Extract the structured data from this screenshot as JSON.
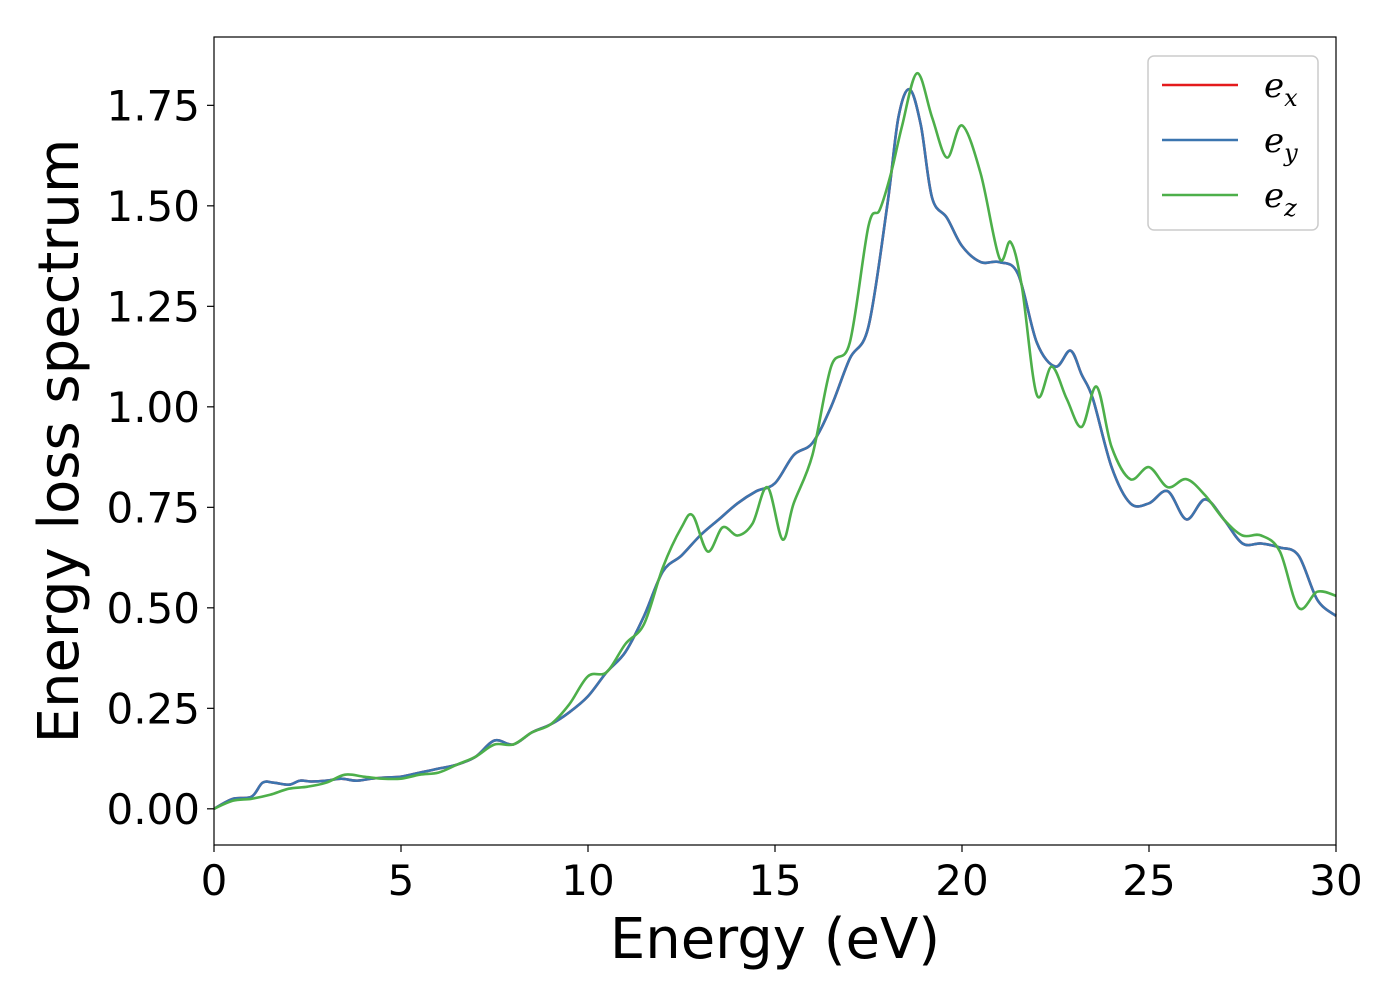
{
  "chart_data": {
    "type": "line",
    "title": "",
    "xlabel": "Energy (eV)",
    "ylabel": "Energy loss spectrum",
    "xlim": [
      0,
      30
    ],
    "ylim": [
      -0.09,
      1.92
    ],
    "xticks": [
      0,
      5,
      10,
      15,
      20,
      25,
      30
    ],
    "xtick_labels": [
      "0",
      "5",
      "10",
      "15",
      "20",
      "25",
      "30"
    ],
    "yticks": [
      0,
      0.25,
      0.5,
      0.75,
      1.0,
      1.25,
      1.5,
      1.75
    ],
    "ytick_labels": [
      "0.00",
      "0.25",
      "0.50",
      "0.75",
      "1.00",
      "1.25",
      "1.50",
      "1.75"
    ],
    "grid": false,
    "legend_position": "top-right",
    "series": [
      {
        "name": "e_x",
        "legend_base": "e",
        "legend_sub": "x",
        "color": "#e41a1c",
        "x": [
          0,
          0.5,
          1.0,
          1.3,
          1.6,
          2.0,
          2.3,
          2.6,
          3.0,
          3.4,
          3.8,
          4.2,
          4.6,
          5.0,
          5.5,
          6.0,
          6.5,
          7.0,
          7.5,
          8.0,
          8.5,
          9.0,
          9.5,
          10.0,
          10.5,
          11.0,
          11.5,
          12.0,
          12.5,
          13.0,
          13.5,
          14.0,
          14.5,
          15.0,
          15.5,
          16.0,
          16.5,
          17.0,
          17.5,
          18.0,
          18.3,
          18.6,
          18.9,
          19.2,
          19.6,
          20.0,
          20.5,
          21.0,
          21.5,
          22.0,
          22.5,
          22.9,
          23.2,
          23.5,
          24.0,
          24.5,
          25.0,
          25.5,
          26.0,
          26.5,
          27.0,
          27.5,
          28.0,
          28.5,
          29.0,
          29.5,
          30.0
        ],
        "values": [
          0.0,
          0.025,
          0.03,
          0.065,
          0.065,
          0.06,
          0.07,
          0.068,
          0.07,
          0.075,
          0.07,
          0.075,
          0.078,
          0.08,
          0.09,
          0.1,
          0.11,
          0.13,
          0.17,
          0.16,
          0.19,
          0.21,
          0.24,
          0.28,
          0.34,
          0.39,
          0.48,
          0.59,
          0.63,
          0.68,
          0.72,
          0.76,
          0.79,
          0.81,
          0.88,
          0.91,
          1.0,
          1.12,
          1.2,
          1.5,
          1.72,
          1.79,
          1.7,
          1.52,
          1.47,
          1.4,
          1.36,
          1.36,
          1.33,
          1.16,
          1.1,
          1.14,
          1.08,
          1.02,
          0.85,
          0.76,
          0.76,
          0.79,
          0.72,
          0.77,
          0.72,
          0.66,
          0.66,
          0.65,
          0.63,
          0.52,
          0.48
        ]
      },
      {
        "name": "e_y",
        "legend_base": "e",
        "legend_sub": "y",
        "color": "#3b75af",
        "x": [
          0,
          0.5,
          1.0,
          1.3,
          1.6,
          2.0,
          2.3,
          2.6,
          3.0,
          3.4,
          3.8,
          4.2,
          4.6,
          5.0,
          5.5,
          6.0,
          6.5,
          7.0,
          7.5,
          8.0,
          8.5,
          9.0,
          9.5,
          10.0,
          10.5,
          11.0,
          11.5,
          12.0,
          12.5,
          13.0,
          13.5,
          14.0,
          14.5,
          15.0,
          15.5,
          16.0,
          16.5,
          17.0,
          17.5,
          18.0,
          18.3,
          18.6,
          18.9,
          19.2,
          19.6,
          20.0,
          20.5,
          21.0,
          21.5,
          22.0,
          22.5,
          22.9,
          23.2,
          23.5,
          24.0,
          24.5,
          25.0,
          25.5,
          26.0,
          26.5,
          27.0,
          27.5,
          28.0,
          28.5,
          29.0,
          29.5,
          30.0
        ],
        "values": [
          0.0,
          0.025,
          0.03,
          0.065,
          0.065,
          0.06,
          0.07,
          0.068,
          0.07,
          0.075,
          0.07,
          0.075,
          0.078,
          0.08,
          0.09,
          0.1,
          0.11,
          0.13,
          0.17,
          0.16,
          0.19,
          0.21,
          0.24,
          0.28,
          0.34,
          0.39,
          0.48,
          0.59,
          0.63,
          0.68,
          0.72,
          0.76,
          0.79,
          0.81,
          0.88,
          0.91,
          1.0,
          1.12,
          1.2,
          1.5,
          1.72,
          1.79,
          1.7,
          1.52,
          1.47,
          1.4,
          1.36,
          1.36,
          1.33,
          1.16,
          1.1,
          1.14,
          1.08,
          1.02,
          0.85,
          0.76,
          0.76,
          0.79,
          0.72,
          0.77,
          0.72,
          0.66,
          0.66,
          0.65,
          0.63,
          0.52,
          0.48
        ]
      },
      {
        "name": "e_z",
        "legend_base": "e",
        "legend_sub": "z",
        "color": "#4daf4a",
        "x": [
          0,
          0.5,
          1.0,
          1.5,
          2.0,
          2.5,
          3.0,
          3.5,
          4.0,
          4.5,
          5.0,
          5.5,
          6.0,
          6.5,
          7.0,
          7.5,
          8.0,
          8.5,
          9.0,
          9.5,
          10.0,
          10.5,
          11.0,
          11.5,
          12.0,
          12.5,
          12.8,
          13.2,
          13.6,
          14.0,
          14.4,
          14.8,
          15.2,
          15.5,
          16.0,
          16.5,
          17.0,
          17.5,
          17.8,
          18.1,
          18.4,
          18.8,
          19.2,
          19.6,
          20.0,
          20.5,
          21.0,
          21.3,
          21.6,
          22.0,
          22.4,
          22.8,
          23.2,
          23.6,
          24.0,
          24.5,
          25.0,
          25.5,
          26.0,
          26.5,
          27.0,
          27.5,
          28.0,
          28.5,
          29.0,
          29.5,
          30.0
        ],
        "values": [
          0.0,
          0.02,
          0.025,
          0.035,
          0.05,
          0.055,
          0.065,
          0.085,
          0.08,
          0.075,
          0.075,
          0.085,
          0.09,
          0.11,
          0.13,
          0.16,
          0.16,
          0.19,
          0.21,
          0.26,
          0.33,
          0.34,
          0.41,
          0.46,
          0.6,
          0.7,
          0.73,
          0.64,
          0.7,
          0.68,
          0.71,
          0.8,
          0.67,
          0.76,
          0.88,
          1.1,
          1.16,
          1.45,
          1.49,
          1.58,
          1.7,
          1.83,
          1.72,
          1.62,
          1.7,
          1.58,
          1.37,
          1.41,
          1.3,
          1.03,
          1.1,
          1.02,
          0.95,
          1.05,
          0.9,
          0.82,
          0.85,
          0.8,
          0.82,
          0.78,
          0.72,
          0.68,
          0.68,
          0.64,
          0.5,
          0.54,
          0.53
        ]
      }
    ]
  }
}
